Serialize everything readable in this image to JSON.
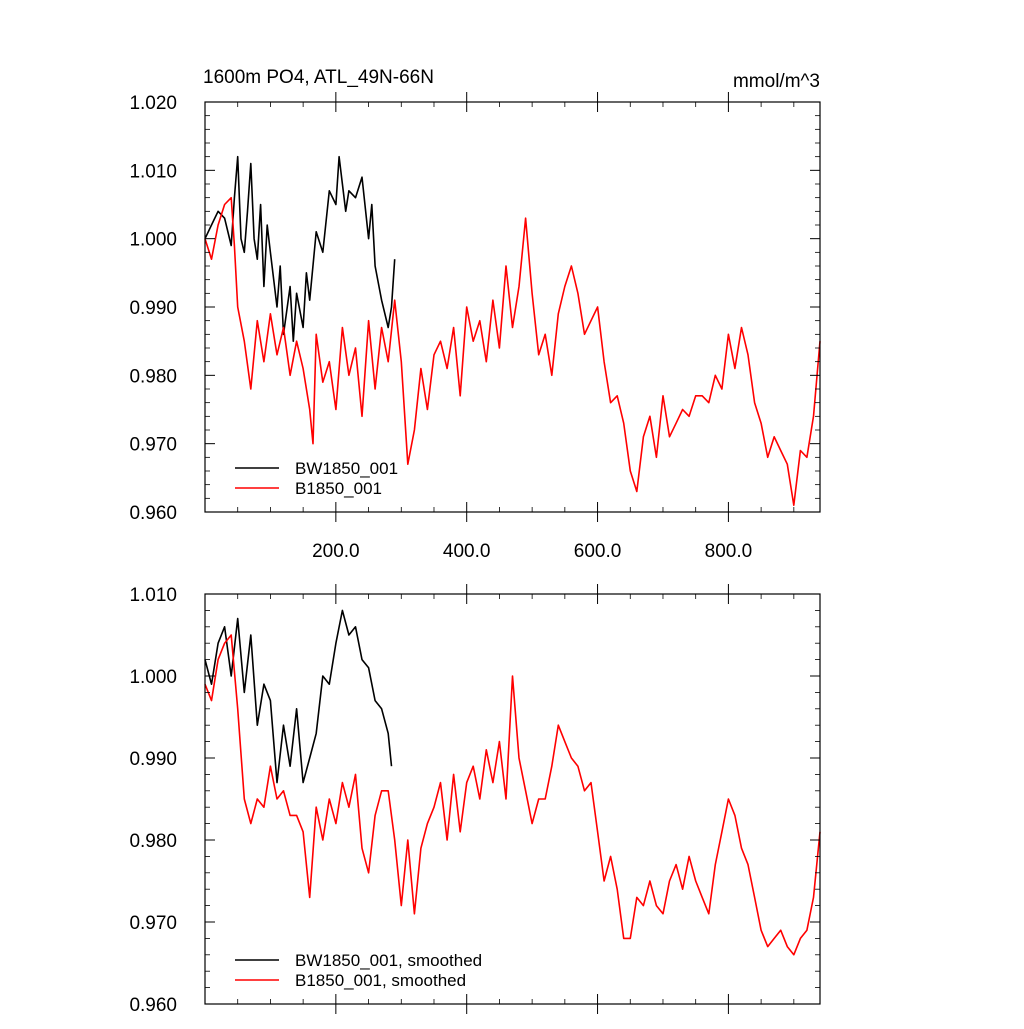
{
  "chart_data": [
    {
      "type": "line",
      "title": "1600m PO4, ATL_49N-66N",
      "units": "mmol/m^3",
      "xlim": [
        0,
        940
      ],
      "ylim": [
        0.96,
        1.02
      ],
      "x_ticks": [
        200,
        400,
        600,
        800
      ],
      "x_tick_labels": [
        "200.0",
        "400.0",
        "600.0",
        "800.0"
      ],
      "y_ticks": [
        0.96,
        0.97,
        0.98,
        0.99,
        1.0,
        1.01,
        1.02
      ],
      "y_tick_labels": [
        "0.960",
        "0.970",
        "0.980",
        "0.990",
        "1.000",
        "1.010",
        "1.020"
      ],
      "legend_placement": "bottom-left",
      "series": [
        {
          "name": "BW1850_001",
          "color": "#000000",
          "x": [
            0,
            10,
            20,
            30,
            40,
            45,
            50,
            55,
            60,
            65,
            70,
            75,
            80,
            85,
            90,
            95,
            100,
            110,
            115,
            120,
            130,
            135,
            140,
            150,
            155,
            160,
            170,
            180,
            190,
            200,
            205,
            210,
            215,
            220,
            230,
            240,
            250,
            255,
            260,
            270,
            280,
            285,
            290
          ],
          "y": [
            1.0,
            1.002,
            1.004,
            1.003,
            0.999,
            1.006,
            1.012,
            1.0,
            0.998,
            1.004,
            1.011,
            1.0,
            0.997,
            1.005,
            0.993,
            1.002,
            0.998,
            0.99,
            0.996,
            0.986,
            0.993,
            0.985,
            0.992,
            0.987,
            0.995,
            0.991,
            1.001,
            0.998,
            1.007,
            1.005,
            1.012,
            1.008,
            1.004,
            1.007,
            1.006,
            1.009,
            1.0,
            1.005,
            0.996,
            0.991,
            0.987,
            0.99,
            0.997
          ]
        },
        {
          "name": "B1850_001",
          "color": "#ff0000",
          "x": [
            0,
            10,
            20,
            30,
            40,
            45,
            50,
            60,
            70,
            80,
            90,
            100,
            110,
            120,
            130,
            140,
            150,
            160,
            165,
            170,
            180,
            190,
            200,
            210,
            220,
            230,
            240,
            250,
            260,
            270,
            280,
            290,
            300,
            310,
            320,
            330,
            340,
            350,
            360,
            370,
            380,
            390,
            400,
            410,
            420,
            430,
            440,
            450,
            460,
            470,
            480,
            490,
            500,
            510,
            520,
            530,
            540,
            550,
            560,
            570,
            580,
            590,
            600,
            610,
            620,
            630,
            640,
            650,
            660,
            670,
            680,
            690,
            700,
            710,
            720,
            730,
            740,
            750,
            760,
            770,
            780,
            790,
            800,
            810,
            820,
            830,
            840,
            850,
            860,
            870,
            880,
            890,
            900,
            910,
            920,
            930,
            940
          ],
          "y": [
            1.0,
            0.997,
            1.002,
            1.005,
            1.006,
            0.999,
            0.99,
            0.985,
            0.978,
            0.988,
            0.982,
            0.989,
            0.983,
            0.987,
            0.98,
            0.985,
            0.981,
            0.975,
            0.97,
            0.986,
            0.979,
            0.982,
            0.975,
            0.987,
            0.98,
            0.984,
            0.974,
            0.988,
            0.978,
            0.987,
            0.982,
            0.991,
            0.982,
            0.967,
            0.972,
            0.981,
            0.975,
            0.983,
            0.985,
            0.981,
            0.987,
            0.977,
            0.99,
            0.985,
            0.988,
            0.982,
            0.991,
            0.984,
            0.996,
            0.987,
            0.993,
            1.003,
            0.992,
            0.983,
            0.986,
            0.98,
            0.989,
            0.993,
            0.996,
            0.992,
            0.986,
            0.988,
            0.99,
            0.982,
            0.976,
            0.977,
            0.973,
            0.966,
            0.963,
            0.971,
            0.974,
            0.968,
            0.977,
            0.971,
            0.973,
            0.975,
            0.974,
            0.977,
            0.977,
            0.976,
            0.98,
            0.978,
            0.986,
            0.981,
            0.987,
            0.983,
            0.976,
            0.973,
            0.968,
            0.971,
            0.969,
            0.967,
            0.961,
            0.969,
            0.968,
            0.974,
            0.985
          ]
        }
      ]
    },
    {
      "type": "line",
      "title": "",
      "xlim": [
        0,
        940
      ],
      "ylim": [
        0.96,
        1.01
      ],
      "x_ticks": [
        200,
        400,
        600,
        800
      ],
      "x_tick_labels": [],
      "y_ticks": [
        0.96,
        0.97,
        0.98,
        0.99,
        1.0,
        1.01
      ],
      "y_tick_labels": [
        "0.960",
        "0.970",
        "0.980",
        "0.990",
        "1.000",
        "1.010"
      ],
      "legend_placement": "bottom-left",
      "series": [
        {
          "name": "BW1850_001, smoothed",
          "color": "#000000",
          "x": [
            0,
            10,
            20,
            30,
            40,
            50,
            60,
            70,
            80,
            90,
            100,
            110,
            120,
            130,
            140,
            150,
            160,
            170,
            180,
            190,
            200,
            210,
            220,
            230,
            240,
            250,
            260,
            270,
            280,
            285
          ],
          "y": [
            1.002,
            0.999,
            1.004,
            1.006,
            1.0,
            1.007,
            0.998,
            1.005,
            0.994,
            0.999,
            0.997,
            0.987,
            0.994,
            0.989,
            0.996,
            0.987,
            0.99,
            0.993,
            1.0,
            0.999,
            1.004,
            1.008,
            1.005,
            1.006,
            1.002,
            1.001,
            0.997,
            0.996,
            0.993,
            0.989
          ]
        },
        {
          "name": "B1850_001, smoothed",
          "color": "#ff0000",
          "x": [
            0,
            10,
            20,
            30,
            40,
            50,
            60,
            70,
            80,
            90,
            100,
            110,
            120,
            130,
            140,
            150,
            160,
            170,
            180,
            190,
            200,
            210,
            220,
            230,
            240,
            250,
            260,
            270,
            280,
            290,
            300,
            310,
            320,
            330,
            340,
            350,
            360,
            370,
            380,
            390,
            400,
            410,
            420,
            430,
            440,
            450,
            460,
            470,
            480,
            490,
            500,
            510,
            520,
            530,
            540,
            550,
            560,
            570,
            580,
            590,
            600,
            610,
            620,
            630,
            640,
            650,
            660,
            670,
            680,
            690,
            700,
            710,
            720,
            730,
            740,
            750,
            760,
            770,
            780,
            790,
            800,
            810,
            820,
            830,
            840,
            850,
            860,
            870,
            880,
            890,
            900,
            910,
            920,
            930,
            940
          ],
          "y": [
            0.999,
            0.997,
            1.002,
            1.004,
            1.005,
            0.996,
            0.985,
            0.982,
            0.985,
            0.984,
            0.989,
            0.985,
            0.986,
            0.983,
            0.983,
            0.981,
            0.973,
            0.984,
            0.98,
            0.985,
            0.982,
            0.987,
            0.984,
            0.988,
            0.979,
            0.976,
            0.983,
            0.986,
            0.986,
            0.98,
            0.972,
            0.98,
            0.971,
            0.979,
            0.982,
            0.984,
            0.987,
            0.98,
            0.988,
            0.981,
            0.987,
            0.989,
            0.985,
            0.991,
            0.987,
            0.992,
            0.985,
            1.0,
            0.99,
            0.986,
            0.982,
            0.985,
            0.985,
            0.989,
            0.994,
            0.992,
            0.99,
            0.989,
            0.986,
            0.987,
            0.981,
            0.975,
            0.978,
            0.974,
            0.968,
            0.968,
            0.973,
            0.972,
            0.975,
            0.972,
            0.971,
            0.975,
            0.977,
            0.974,
            0.978,
            0.975,
            0.973,
            0.971,
            0.977,
            0.981,
            0.985,
            0.983,
            0.979,
            0.977,
            0.973,
            0.969,
            0.967,
            0.968,
            0.969,
            0.967,
            0.966,
            0.968,
            0.969,
            0.973,
            0.981
          ]
        }
      ]
    }
  ]
}
